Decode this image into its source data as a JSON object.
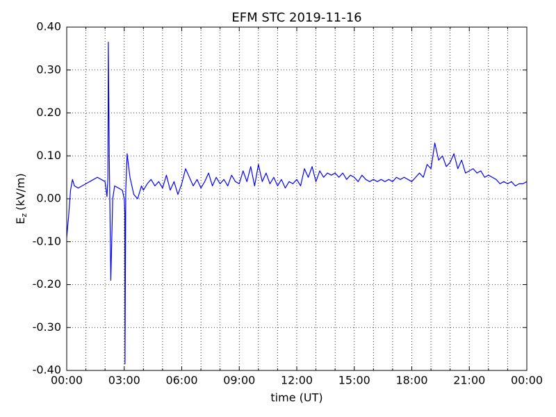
{
  "chart_data": {
    "type": "line",
    "title": "EFM STC    2019-11-16",
    "xlabel": "time (UT)",
    "ylabel": {
      "symbol": "E",
      "subscript": "z",
      "unit": "(kV/m)"
    },
    "x": [
      0,
      0.1,
      0.2,
      0.3,
      0.4,
      0.6,
      0.8,
      1.0,
      1.2,
      1.4,
      1.6,
      1.8,
      2.0,
      2.1,
      2.15,
      2.17,
      2.22,
      2.3,
      2.4,
      2.5,
      2.7,
      2.9,
      3.0,
      3.03,
      3.04,
      3.08,
      3.15,
      3.3,
      3.5,
      3.7,
      3.9,
      4.0,
      4.2,
      4.4,
      4.6,
      4.8,
      5.0,
      5.2,
      5.4,
      5.6,
      5.8,
      6.0,
      6.2,
      6.4,
      6.6,
      6.8,
      7.0,
      7.2,
      7.4,
      7.6,
      7.8,
      8.0,
      8.2,
      8.4,
      8.6,
      8.8,
      9.0,
      9.2,
      9.4,
      9.6,
      9.8,
      10.0,
      10.2,
      10.4,
      10.6,
      10.8,
      11.0,
      11.2,
      11.4,
      11.6,
      11.8,
      12.0,
      12.2,
      12.4,
      12.6,
      12.8,
      13.0,
      13.2,
      13.4,
      13.6,
      13.8,
      14.0,
      14.2,
      14.4,
      14.6,
      14.8,
      15.0,
      15.2,
      15.4,
      15.6,
      15.8,
      16.0,
      16.2,
      16.4,
      16.6,
      16.8,
      17.0,
      17.2,
      17.4,
      17.6,
      17.8,
      18.0,
      18.2,
      18.4,
      18.6,
      18.8,
      19.0,
      19.2,
      19.4,
      19.6,
      19.8,
      20.0,
      20.2,
      20.4,
      20.6,
      20.8,
      21.0,
      21.2,
      21.4,
      21.6,
      21.8,
      22.0,
      22.2,
      22.4,
      22.6,
      22.8,
      23.0,
      23.2,
      23.4,
      23.6,
      23.8,
      24.0
    ],
    "series": [
      {
        "name": "Ez",
        "color": "#0000ff",
        "values": [
          -0.09,
          -0.04,
          0.02,
          0.045,
          0.03,
          0.025,
          0.03,
          0.035,
          0.04,
          0.045,
          0.05,
          0.045,
          0.04,
          0.005,
          0.05,
          0.365,
          0.1,
          -0.19,
          0.0,
          0.03,
          0.025,
          0.02,
          0.0,
          -0.03,
          -0.385,
          0.02,
          0.105,
          0.05,
          0.01,
          0.0,
          0.03,
          0.02,
          0.035,
          0.045,
          0.03,
          0.04,
          0.025,
          0.055,
          0.02,
          0.04,
          0.01,
          0.035,
          0.07,
          0.05,
          0.03,
          0.045,
          0.025,
          0.04,
          0.06,
          0.03,
          0.05,
          0.035,
          0.045,
          0.03,
          0.055,
          0.04,
          0.035,
          0.065,
          0.04,
          0.075,
          0.03,
          0.08,
          0.04,
          0.06,
          0.035,
          0.05,
          0.03,
          0.045,
          0.025,
          0.04,
          0.035,
          0.045,
          0.03,
          0.07,
          0.05,
          0.075,
          0.04,
          0.065,
          0.05,
          0.06,
          0.055,
          0.06,
          0.05,
          0.06,
          0.045,
          0.055,
          0.05,
          0.04,
          0.055,
          0.045,
          0.04,
          0.045,
          0.04,
          0.045,
          0.04,
          0.045,
          0.04,
          0.05,
          0.045,
          0.05,
          0.045,
          0.04,
          0.05,
          0.06,
          0.05,
          0.08,
          0.07,
          0.13,
          0.09,
          0.1,
          0.075,
          0.085,
          0.105,
          0.07,
          0.09,
          0.06,
          0.065,
          0.07,
          0.06,
          0.065,
          0.05,
          0.055,
          0.05,
          0.045,
          0.035,
          0.04,
          0.035,
          0.04,
          0.03,
          0.035,
          0.035,
          0.04
        ]
      }
    ],
    "xlim": [
      0,
      24
    ],
    "xticks": [
      {
        "value": 0,
        "label": "00:00"
      },
      {
        "value": 3,
        "label": "03:00"
      },
      {
        "value": 6,
        "label": "06:00"
      },
      {
        "value": 9,
        "label": "09:00"
      },
      {
        "value": 12,
        "label": "12:00"
      },
      {
        "value": 15,
        "label": "15:00"
      },
      {
        "value": 18,
        "label": "18:00"
      },
      {
        "value": 21,
        "label": "21:00"
      },
      {
        "value": 24,
        "label": "00:00"
      }
    ],
    "xminorticks": [
      1,
      2,
      4,
      5,
      7,
      8,
      10,
      11,
      13,
      14,
      16,
      17,
      19,
      20,
      22,
      23
    ],
    "ylim": [
      -0.4,
      0.4
    ],
    "yticks": [
      {
        "value": -0.4,
        "label": "-0.40"
      },
      {
        "value": -0.3,
        "label": "-0.30"
      },
      {
        "value": -0.2,
        "label": "-0.20"
      },
      {
        "value": -0.1,
        "label": "-0.10"
      },
      {
        "value": 0,
        "label": "0.00"
      },
      {
        "value": 0.1,
        "label": "0.10"
      },
      {
        "value": 0.2,
        "label": "0.20"
      },
      {
        "value": 0.3,
        "label": "0.30"
      },
      {
        "value": 0.4,
        "label": "0.40"
      }
    ],
    "grid": true
  }
}
